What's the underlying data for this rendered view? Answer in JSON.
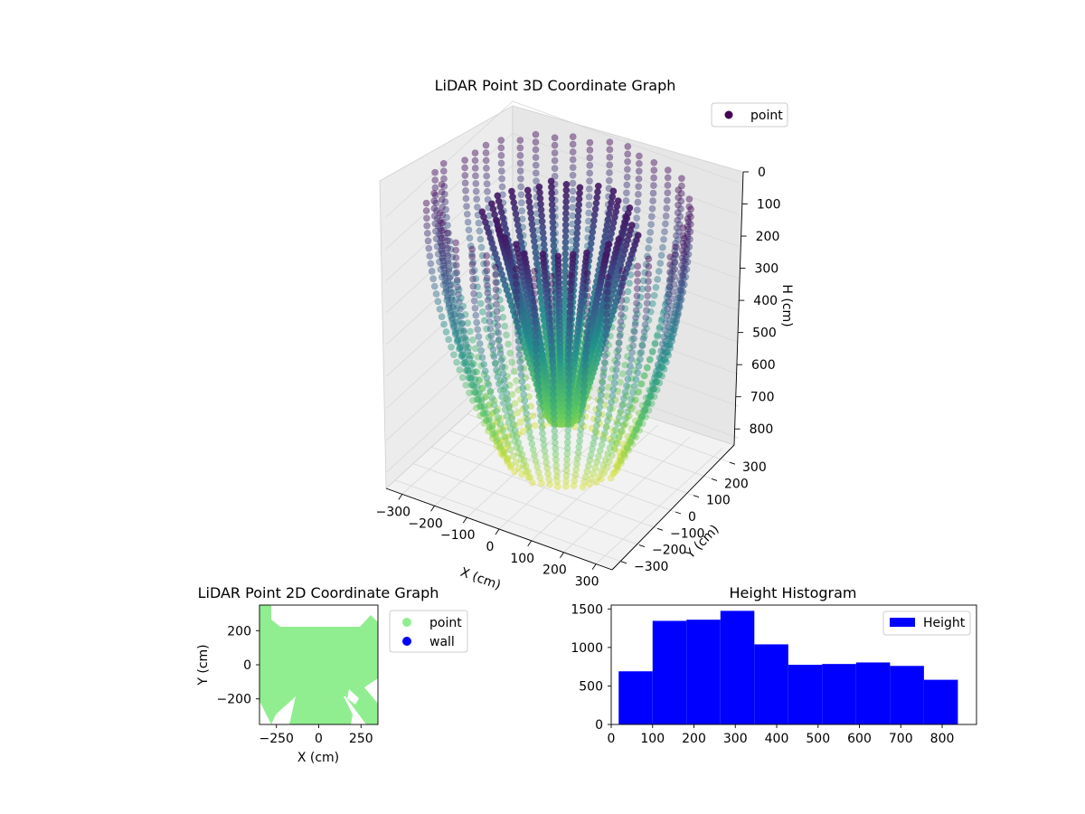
{
  "chart_data": [
    {
      "type": "scatter",
      "projection": "3d",
      "title": "LiDAR Point 3D Coordinate Graph",
      "xlabel": "X (cm)",
      "ylabel": "Y (cm)",
      "zlabel": "H (cm)",
      "xticks": [
        -300,
        -200,
        -100,
        0,
        100,
        200,
        300
      ],
      "yticks": [
        -300,
        -200,
        -100,
        0,
        100,
        200,
        300
      ],
      "zticks": [
        0,
        100,
        200,
        300,
        400,
        500,
        600,
        700,
        800
      ],
      "xlim": [
        -350,
        350
      ],
      "ylim": [
        -350,
        350
      ],
      "zlim": [
        0,
        850
      ],
      "z_inverted": true,
      "colormap": "viridis",
      "grid": true,
      "legend": {
        "entries": [
          "point"
        ],
        "placement": "top-right",
        "marker_color": "#440154"
      }
    },
    {
      "type": "scatter",
      "title": "LiDAR Point 2D Coordinate Graph",
      "xlabel": "X (cm)",
      "ylabel": "Y (cm)",
      "xticks": [
        -250,
        0,
        250
      ],
      "yticks": [
        -200,
        0,
        200
      ],
      "xlim": [
        -350,
        350
      ],
      "ylim": [
        -350,
        350
      ],
      "series": [
        {
          "name": "point",
          "color": "#90ee90"
        },
        {
          "name": "wall",
          "color": "#0000ff"
        }
      ],
      "legend": {
        "placement": "outside-right"
      }
    },
    {
      "type": "bar",
      "subtype": "histogram",
      "title": "Height Histogram",
      "bin_edges": [
        18,
        100,
        182,
        264,
        346,
        428,
        510,
        592,
        674,
        756,
        838
      ],
      "values": [
        690,
        1345,
        1360,
        1475,
        1040,
        775,
        785,
        805,
        760,
        580
      ],
      "xticks": [
        0,
        100,
        200,
        300,
        400,
        500,
        600,
        700,
        800
      ],
      "yticks": [
        0,
        500,
        1000,
        1500
      ],
      "xlim": [
        0,
        883
      ],
      "ylim": [
        0,
        1550
      ],
      "color": "#0000ff",
      "series": [
        {
          "name": "Height",
          "color": "#0000ff"
        }
      ],
      "legend": {
        "placement": "top-right"
      }
    }
  ]
}
